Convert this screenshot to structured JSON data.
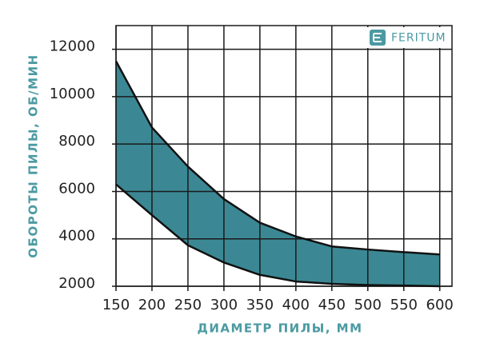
{
  "brand": "FERITUM",
  "chart_data": {
    "type": "band",
    "x_label": "ДИАМЕТР ПИЛЫ, ММ",
    "y_label": "ОБОРОТЫ ПИЛЫ, ОБ/МИН",
    "x": [
      150,
      200,
      250,
      300,
      350,
      400,
      450,
      500,
      550,
      600
    ],
    "series": [
      {
        "color": "#111111",
        "values": [
          11500,
          8700,
          7050,
          5680,
          4680,
          4100,
          3680,
          3550,
          3440,
          3340
        ]
      },
      {
        "color": "#111111",
        "values": [
          6300,
          5000,
          3730,
          3000,
          2480,
          2200,
          2100,
          2050,
          2030,
          2000
        ]
      }
    ],
    "fill_color": "#3b8894",
    "xlim": [
      150,
      617
    ],
    "xticks": [
      150,
      200,
      250,
      300,
      350,
      400,
      450,
      500,
      550,
      600
    ],
    "ylim": [
      2000,
      13000
    ],
    "yticks": [
      2000,
      4000,
      6000,
      8000,
      10000,
      12000
    ],
    "grid": true
  }
}
